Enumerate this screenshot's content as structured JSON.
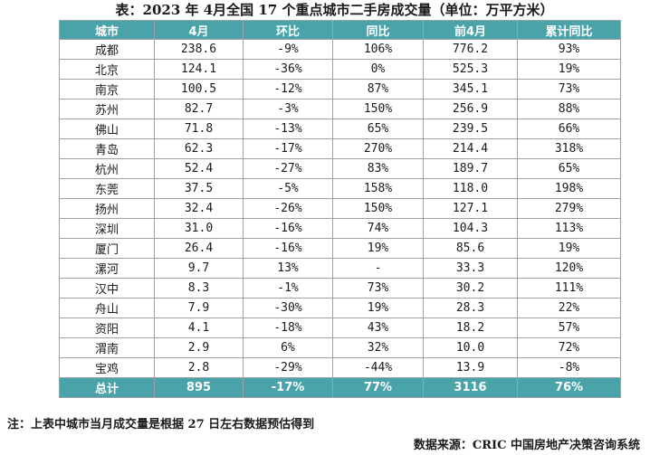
{
  "title": "表：2023 年 4月全国 17 个重点城市二手房成交量（单位：万平方米）",
  "headers": [
    "城市",
    "4月",
    "环比",
    "同比",
    "前4月",
    "累计同比"
  ],
  "rows": [
    {
      "city": "成都",
      "apr": "238.6",
      "mom": "-9%",
      "yoy": "106%",
      "ytd": "776.2",
      "ytd_yoy": "93%"
    },
    {
      "city": "北京",
      "apr": "124.1",
      "mom": "-36%",
      "yoy": "0%",
      "ytd": "525.3",
      "ytd_yoy": "19%"
    },
    {
      "city": "南京",
      "apr": "100.5",
      "mom": "-12%",
      "yoy": "87%",
      "ytd": "345.1",
      "ytd_yoy": "73%"
    },
    {
      "city": "苏州",
      "apr": "82.7",
      "mom": "-3%",
      "yoy": "150%",
      "ytd": "256.9",
      "ytd_yoy": "88%"
    },
    {
      "city": "佛山",
      "apr": "71.8",
      "mom": "-13%",
      "yoy": "65%",
      "ytd": "239.5",
      "ytd_yoy": "66%"
    },
    {
      "city": "青岛",
      "apr": "62.3",
      "mom": "-17%",
      "yoy": "270%",
      "ytd": "214.4",
      "ytd_yoy": "318%"
    },
    {
      "city": "杭州",
      "apr": "52.4",
      "mom": "-27%",
      "yoy": "83%",
      "ytd": "189.7",
      "ytd_yoy": "65%"
    },
    {
      "city": "东莞",
      "apr": "37.5",
      "mom": "-5%",
      "yoy": "158%",
      "ytd": "118.0",
      "ytd_yoy": "198%"
    },
    {
      "city": "扬州",
      "apr": "32.4",
      "mom": "-26%",
      "yoy": "150%",
      "ytd": "127.1",
      "ytd_yoy": "279%"
    },
    {
      "city": "深圳",
      "apr": "31.0",
      "mom": "-16%",
      "yoy": "74%",
      "ytd": "104.3",
      "ytd_yoy": "113%"
    },
    {
      "city": "厦门",
      "apr": "26.4",
      "mom": "-16%",
      "yoy": "19%",
      "ytd": "85.6",
      "ytd_yoy": "19%"
    },
    {
      "city": "漯河",
      "apr": "9.7",
      "mom": "13%",
      "yoy": "-",
      "ytd": "33.3",
      "ytd_yoy": "120%"
    },
    {
      "city": "汉中",
      "apr": "8.3",
      "mom": "-1%",
      "yoy": "73%",
      "ytd": "30.2",
      "ytd_yoy": "111%"
    },
    {
      "city": "舟山",
      "apr": "7.9",
      "mom": "-30%",
      "yoy": "19%",
      "ytd": "28.3",
      "ytd_yoy": "22%"
    },
    {
      "city": "资阳",
      "apr": "4.1",
      "mom": "-18%",
      "yoy": "43%",
      "ytd": "18.2",
      "ytd_yoy": "57%"
    },
    {
      "city": "渭南",
      "apr": "2.9",
      "mom": "6%",
      "yoy": "32%",
      "ytd": "10.0",
      "ytd_yoy": "72%"
    },
    {
      "city": "宝鸡",
      "apr": "2.8",
      "mom": "-29%",
      "yoy": "-44%",
      "ytd": "13.9",
      "ytd_yoy": "-8%"
    }
  ],
  "total": {
    "city": "总计",
    "apr": "895",
    "mom": "-17%",
    "yoy": "77%",
    "ytd": "3116",
    "ytd_yoy": "76%"
  },
  "note": "注：上表中城市当月成交量是根据 27 日左右数据预估得到",
  "source": "数据来源：CRIC 中国房地产决策咨询系统",
  "colors": {
    "header_bg": "#4aa3a8",
    "header_text": "#ffffff",
    "border": "#9aa3a8"
  }
}
